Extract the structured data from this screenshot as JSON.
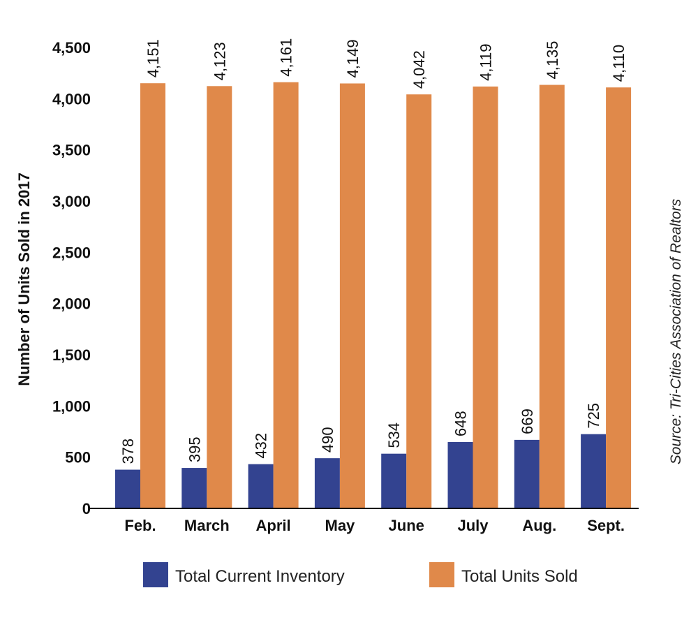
{
  "chart_data": {
    "type": "bar",
    "title": "",
    "xlabel": "",
    "ylabel": "Number of Units Sold in 2017",
    "ylim": [
      0,
      4500
    ],
    "yticks": [
      0,
      500,
      1000,
      1500,
      2000,
      2500,
      3000,
      3500,
      4000,
      4500
    ],
    "ytick_labels": [
      "0",
      "500",
      "1,000",
      "1,500",
      "2,000",
      "2,500",
      "3,000",
      "3,500",
      "4,000",
      "4,500"
    ],
    "grid": false,
    "legend_position": "bottom",
    "categories": [
      "Feb.",
      "March",
      "April",
      "May",
      "June",
      "July",
      "Aug.",
      "Sept."
    ],
    "series": [
      {
        "name": "Total Current Inventory",
        "color": "#334390",
        "values": [
          378,
          395,
          432,
          490,
          534,
          648,
          669,
          725
        ],
        "labels": [
          "378",
          "395",
          "432",
          "490",
          "534",
          "648",
          "669",
          "725"
        ]
      },
      {
        "name": "Total Units Sold",
        "color": "#e0894a",
        "values": [
          4151,
          4123,
          4161,
          4149,
          4042,
          4119,
          4135,
          4110
        ],
        "labels": [
          "4,151",
          "4,123",
          "4,161",
          "4,149",
          "4,042",
          "4,119",
          "4,135",
          "4,110"
        ]
      }
    ],
    "annotation": "Source: Tri-Cities Association of Realtors"
  }
}
